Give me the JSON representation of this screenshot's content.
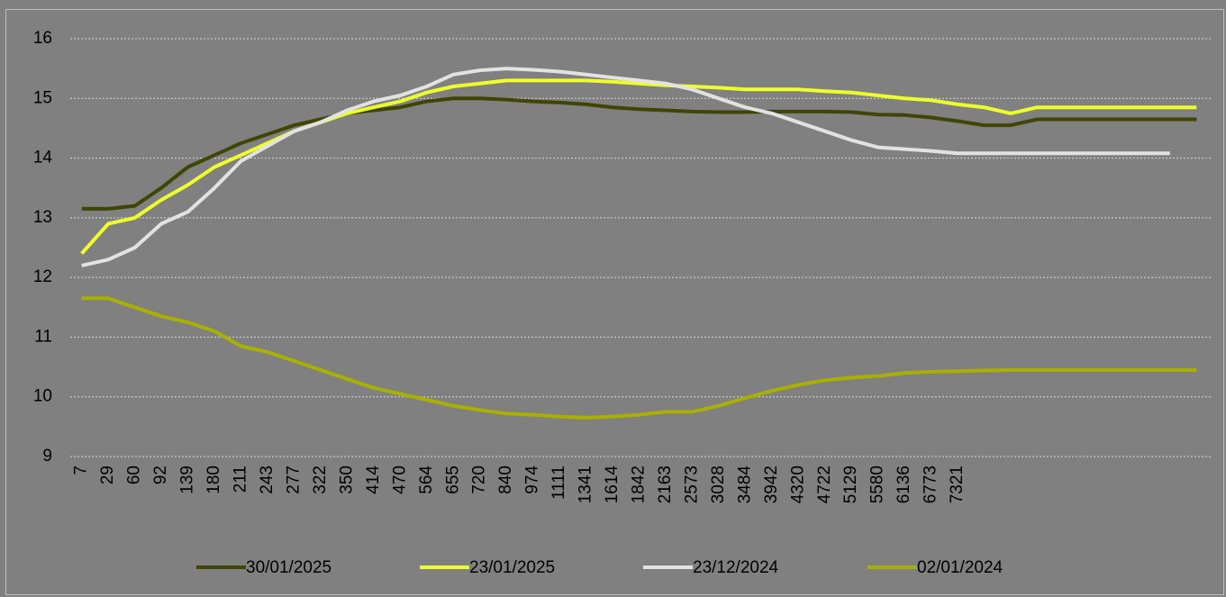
{
  "chart_data": {
    "type": "line",
    "categories": [
      "7",
      "29",
      "60",
      "92",
      "139",
      "180",
      "211",
      "243",
      "277",
      "322",
      "350",
      "414",
      "470",
      "564",
      "655",
      "720",
      "840",
      "974",
      "1111",
      "1341",
      "1614",
      "1842",
      "2163",
      "2573",
      "3028",
      "3484",
      "3942",
      "4320",
      "4722",
      "5129",
      "5580",
      "6136",
      "6773",
      "7321",
      null,
      null,
      null,
      null,
      null,
      null,
      null,
      null,
      null
    ],
    "series": [
      {
        "name": "30/01/2025",
        "color": "#3f4504",
        "values": [
          13.15,
          13.15,
          13.2,
          13.5,
          13.85,
          14.05,
          14.25,
          14.4,
          14.55,
          14.65,
          14.75,
          14.8,
          14.85,
          14.95,
          15.0,
          15.0,
          14.98,
          14.95,
          14.93,
          14.9,
          14.85,
          14.82,
          14.8,
          14.78,
          14.77,
          14.77,
          14.78,
          14.78,
          14.78,
          14.77,
          14.73,
          14.72,
          14.68,
          14.62,
          14.55,
          14.55,
          14.65,
          14.65,
          14.65,
          14.65,
          14.65,
          14.65,
          14.65
        ]
      },
      {
        "name": "23/01/2025",
        "color": "#eeff2a",
        "values": [
          12.4,
          12.9,
          13.0,
          13.3,
          13.55,
          13.85,
          14.05,
          14.25,
          14.45,
          14.6,
          14.75,
          14.85,
          14.95,
          15.1,
          15.2,
          15.25,
          15.3,
          15.3,
          15.3,
          15.3,
          15.28,
          15.25,
          15.22,
          15.2,
          15.18,
          15.15,
          15.15,
          15.15,
          15.12,
          15.1,
          15.05,
          15.0,
          14.97,
          14.9,
          14.85,
          14.75,
          14.85,
          14.85,
          14.85,
          14.85,
          14.85,
          14.85,
          14.85
        ]
      },
      {
        "name": "23/12/2024",
        "color": "#e2e2e2",
        "values": [
          12.2,
          12.3,
          12.5,
          12.9,
          13.1,
          13.5,
          13.95,
          14.2,
          14.45,
          14.6,
          14.8,
          14.95,
          15.05,
          15.2,
          15.4,
          15.47,
          15.5,
          15.48,
          15.45,
          15.4,
          15.35,
          15.3,
          15.25,
          15.15,
          15.0,
          14.85,
          14.75,
          14.6,
          14.45,
          14.3,
          14.18,
          14.15,
          14.12,
          14.08,
          14.08,
          14.08,
          14.08,
          14.08,
          14.08,
          14.08,
          14.08,
          14.08,
          null
        ]
      },
      {
        "name": "02/01/2024",
        "color": "#a9b000",
        "values": [
          11.65,
          11.65,
          11.5,
          11.35,
          11.25,
          11.1,
          10.85,
          10.75,
          10.6,
          10.45,
          10.3,
          10.15,
          10.05,
          9.95,
          9.85,
          9.78,
          9.72,
          9.7,
          9.67,
          9.65,
          9.67,
          9.7,
          9.75,
          9.75,
          9.85,
          9.98,
          10.1,
          10.2,
          10.28,
          10.32,
          10.35,
          10.4,
          10.42,
          10.43,
          10.44,
          10.45,
          10.45,
          10.45,
          10.45,
          10.45,
          10.45,
          10.45,
          10.45
        ]
      }
    ],
    "ylim": [
      9,
      16
    ],
    "yticks": [
      9,
      10,
      11,
      12,
      13,
      14,
      15,
      16
    ],
    "grid": true,
    "legend": "bottom"
  }
}
